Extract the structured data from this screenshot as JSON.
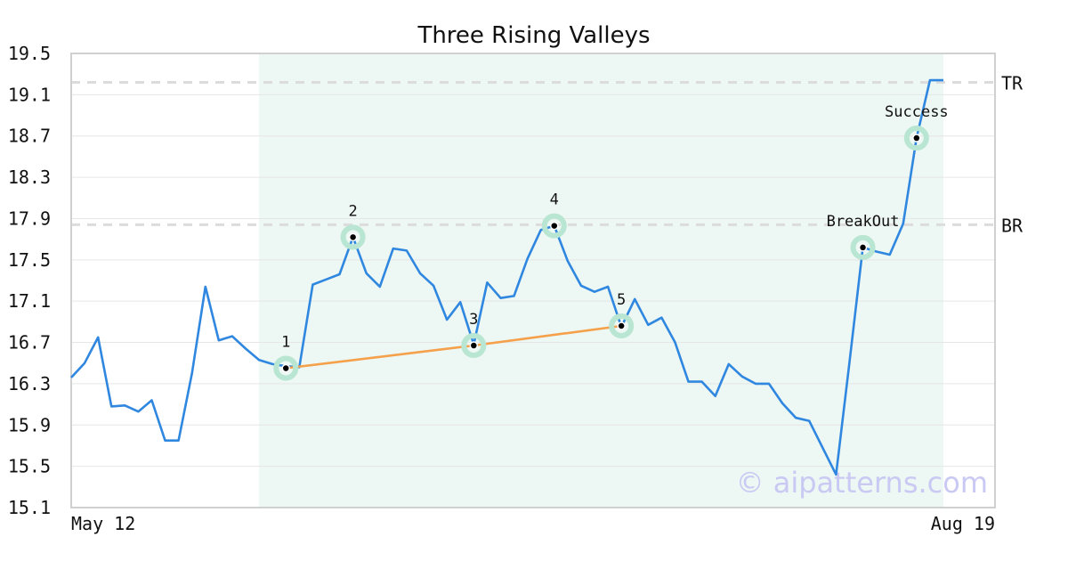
{
  "chart_data": {
    "type": "line",
    "title": "Three Rising Valleys",
    "xlabel": "",
    "ylabel": "",
    "ylim": [
      15.1,
      19.5
    ],
    "y_ticks": [
      "19.5",
      "19.1",
      "18.7",
      "18.3",
      "17.9",
      "17.5",
      "17.1",
      "16.7",
      "16.3",
      "15.9",
      "15.5",
      "15.1"
    ],
    "x_tick_labels": [
      "May 12",
      "Aug 19"
    ],
    "x_start": "May 12",
    "x_end": "Aug 19",
    "grid": true,
    "highlight_range": [
      14,
      65
    ],
    "series": [
      {
        "color": "#2f87e0",
        "values": [
          16.36,
          16.5,
          16.75,
          16.08,
          16.09,
          16.03,
          16.14,
          15.75,
          15.75,
          16.4,
          17.24,
          16.72,
          16.76,
          16.64,
          16.53,
          16.49,
          16.47,
          16.46,
          17.26,
          17.31,
          17.36,
          17.72,
          17.37,
          17.24,
          17.61,
          17.59,
          17.37,
          17.25,
          16.92,
          17.09,
          16.68,
          17.28,
          17.13,
          17.15,
          17.51,
          17.79,
          17.83,
          17.49,
          17.25,
          17.19,
          17.24,
          16.85,
          17.12,
          16.87,
          16.94,
          16.7,
          16.32,
          16.32,
          16.18,
          16.49,
          16.37,
          16.3,
          16.3,
          16.11,
          15.97,
          15.94,
          15.68,
          15.42,
          16.51,
          17.62,
          17.58,
          17.55,
          17.85,
          18.68,
          19.24,
          19.24
        ]
      },
      {
        "color": "#f5a04a",
        "values_at": [
          [
            16,
            16.45
          ],
          [
            30,
            16.67
          ],
          [
            41,
            16.86
          ]
        ]
      }
    ],
    "levels": [
      {
        "label": "TR",
        "value": 19.22
      },
      {
        "label": "BR",
        "value": 17.84
      }
    ],
    "points": [
      {
        "label": "1",
        "x": 16,
        "y": 16.45
      },
      {
        "label": "2",
        "x": 21,
        "y": 17.72
      },
      {
        "label": "3",
        "x": 30,
        "y": 16.67
      },
      {
        "label": "4",
        "x": 36,
        "y": 17.83
      },
      {
        "label": "5",
        "x": 41,
        "y": 16.86
      },
      {
        "label": "BreakOut",
        "x": 59,
        "y": 17.62
      },
      {
        "label": "Success",
        "x": 63,
        "y": 18.68
      }
    ],
    "watermark": "© aipatterns.com"
  }
}
